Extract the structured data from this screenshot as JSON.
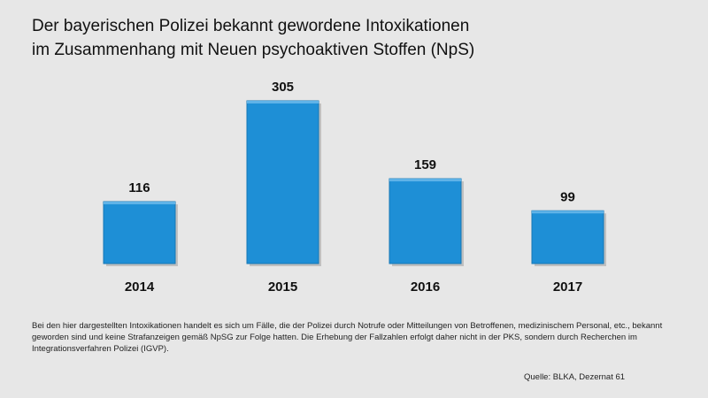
{
  "chart_data": {
    "type": "bar",
    "title": "Der bayerischen Polizei bekannt gewordene Intoxikationen im Zusammenhang mit Neuen psychoaktiven Stoffen (NpS)",
    "title_lines": [
      "Der bayerischen Polizei bekannt gewordene Intoxikationen",
      "im Zusammenhang mit Neuen psychoaktiven Stoffen (NpS)"
    ],
    "categories": [
      "2014",
      "2015",
      "2016",
      "2017"
    ],
    "values": [
      116,
      305,
      159,
      99
    ],
    "data_labels": [
      "116",
      "305",
      "159",
      "99"
    ],
    "xlabel": "",
    "ylabel": "",
    "ylim": [
      0,
      305
    ],
    "grid": false,
    "bar_color": "#1e8fd6",
    "background": "#e7e7e7"
  },
  "footnote": "Bei den hier dargestellten Intoxikationen handelt es sich um Fälle, die der Polizei durch Notrufe oder Mitteilungen von Betroffenen, medizinischem Personal, etc., bekannt geworden sind und keine Strafanzeigen gemäß NpSG zur Folge hatten. Die Erhebung der Fallzahlen erfolgt daher nicht in der PKS, sondern durch Recherchen im Integrationsverfahren Polizei (IGVP).",
  "source": "Quelle: BLKA, Dezernat 61"
}
